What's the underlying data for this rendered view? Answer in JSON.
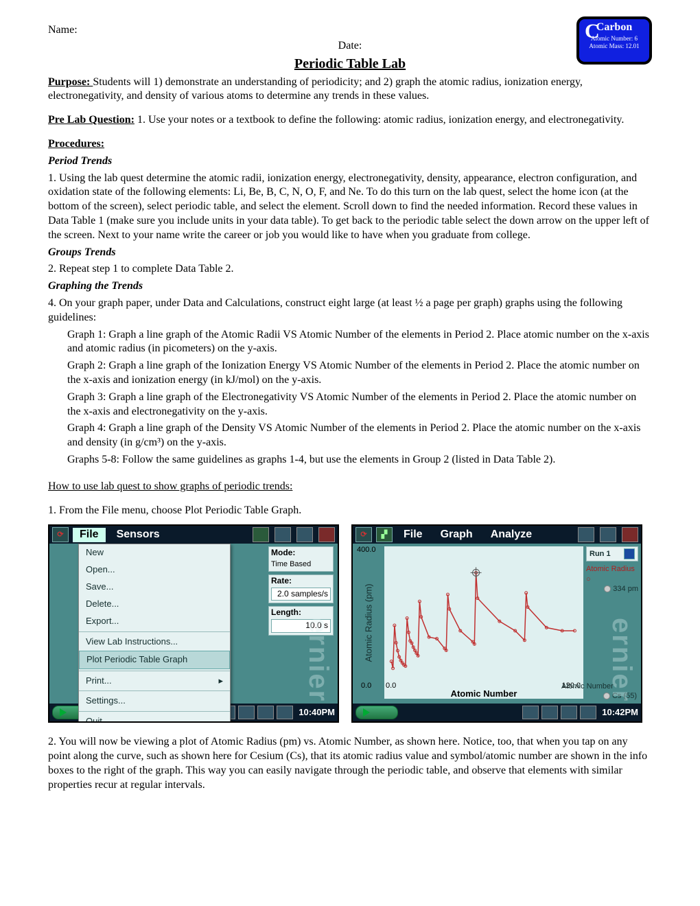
{
  "header": {
    "name_label": "Name:",
    "date_label": "Date:",
    "title": "Periodic Table Lab"
  },
  "carbon_tile": {
    "symbol": "C",
    "name": "Carbon",
    "line1": "Atomic Number: 6",
    "line2": "Atomic Mass: 12.01",
    "bg_color": "#1020e0",
    "border_color": "#000000"
  },
  "purpose": {
    "label": "Purpose:  ",
    "text": "Students will 1) demonstrate an understanding of periodicity; and 2) graph the atomic radius, ionization energy, electronegativity, and density of various atoms to determine any trends in these values."
  },
  "prelab": {
    "label": "Pre Lab Question:",
    "text": " 1. Use your notes or a textbook to define the following:  atomic radius, ionization energy, and electronegativity."
  },
  "procedures_label": "Procedures: ",
  "period_head": "Period Trends",
  "step1": "1.  Using the lab quest determine the atomic radii, ionization energy, electronegativity, density, appearance, electron configuration, and oxidation state of the following elements:  Li, Be, B, C, N, O, F, and Ne.  To do this turn on the lab quest, select the home icon (at the bottom of the screen), select periodic table, and select the element.  Scroll down to find the needed information.  Record these values in Data Table 1 (make sure you include units in your data table).  To get back to the periodic table select the down arrow on the upper left of the screen.  Next to your name write the career or job you would like to have when you graduate from college.",
  "groups_head": "Groups Trends",
  "step2": "2.  Repeat step 1 to complete Data Table 2.",
  "graphing_head": "Graphing the Trends",
  "step4_intro": "4.  On your graph paper, under Data and Calculations, construct eight large (at least ½ a page per graph) graphs using the following guidelines:",
  "graph1": "Graph 1:  Graph a line graph of the Atomic Radii VS Atomic Number of the elements in Period 2.  Place         atomic number on the x-axis and atomic radius (in picometers) on the y-axis.",
  "graph2": "Graph 2:  Graph a line graph of the Ionization Energy VS Atomic Number of the elements in Period 2.  Place the atomic number on the x-axis and ionization energy (in kJ/mol) on the y-axis.",
  "graph3": "Graph 3:  Graph a line graph of the Electronegativity VS Atomic Number of the elements in Period 2.  Place the atomic number on the x-axis and electronegativity on the y-axis.",
  "graph4": "Graph 4:  Graph a line graph of the Density VS Atomic Number of the elements in Period 2.  Place the atomic number on the x-axis and density (in g/cm³) on the y-axis.",
  "graph5_8": "Graphs 5-8:  Follow the same guidelines as graphs 1-4, but use the elements in Group 2 (listed in Data Table 2).",
  "howto_head": "How to use lab quest to show graphs of periodic trends:",
  "howto_1": "1.  From the File menu, choose Plot Periodic Table Graph.",
  "howto_2": "2.  You will now be viewing a plot of Atomic Radius (pm) vs. Atomic Number, as shown here. Notice, too, that when you tap on any point along the curve, such as shown here for Cesium (Cs), that its atomic radius value and symbol/atomic number are shown in the info boxes to the right of the graph. This way you can easily navigate through the periodic table, and observe that elements with similar properties recur at regular intervals.",
  "shot1": {
    "menus": {
      "file": "File",
      "sensors": "Sensors"
    },
    "file_menu": [
      "New",
      "Open...",
      "Save...",
      "Delete...",
      "Export...",
      "__sep__",
      "View Lab Instructions...",
      "Plot Periodic Table Graph",
      "__sep__",
      "Print...",
      "__sep__",
      "Settings...",
      "__sep__",
      "Quit"
    ],
    "selected_item": "Plot Periodic Table Graph",
    "print_has_arrow": true,
    "params": {
      "mode_label": "Mode:",
      "mode_val": "Time Based",
      "rate_label": "Rate:",
      "rate_val": "2.0 samples/s",
      "len_label": "Length:",
      "len_val": "10.0 s"
    },
    "time": "10:40PM",
    "watermark": "ernier"
  },
  "shot2": {
    "menus": {
      "file": "File",
      "graph": "Graph",
      "analyze": "Analyze"
    },
    "ylabel": "Atomic Radius (pm)",
    "xlabel": "Atomic Number",
    "ylim": [
      0.0,
      400.0
    ],
    "xlim": [
      0.0,
      120.0
    ],
    "ytick_top": "400.0",
    "ytick_bot": "0.0",
    "xtick_left": "0.0",
    "xtick_right": "120.0",
    "run_label": "Run 1",
    "legend1_label": "Atomic Radius",
    "legend1_val": "334 pm",
    "legend1_color": "#b02020",
    "legend2_label": "Atomic Number",
    "legend2_val": "Cs (55)",
    "time": "10:42PM",
    "watermark": "ernier",
    "line_color": "#c03030",
    "bg_color": "#dff0f0",
    "series_x": [
      1,
      2,
      3,
      4,
      5,
      6,
      7,
      8,
      9,
      10,
      11,
      12,
      13,
      14,
      15,
      16,
      17,
      18,
      19,
      20,
      25,
      30,
      35,
      36,
      37,
      38,
      45,
      53,
      54,
      55,
      56,
      70,
      80,
      86,
      87,
      88,
      100,
      110,
      118
    ],
    "series_y": [
      53,
      31,
      167,
      112,
      87,
      67,
      56,
      48,
      42,
      38,
      190,
      145,
      118,
      111,
      98,
      88,
      79,
      71,
      243,
      194,
      130,
      125,
      94,
      88,
      265,
      219,
      150,
      115,
      108,
      334,
      253,
      180,
      150,
      120,
      270,
      225,
      160,
      150,
      150
    ],
    "cursor_x": 55,
    "cursor_y": 334
  }
}
